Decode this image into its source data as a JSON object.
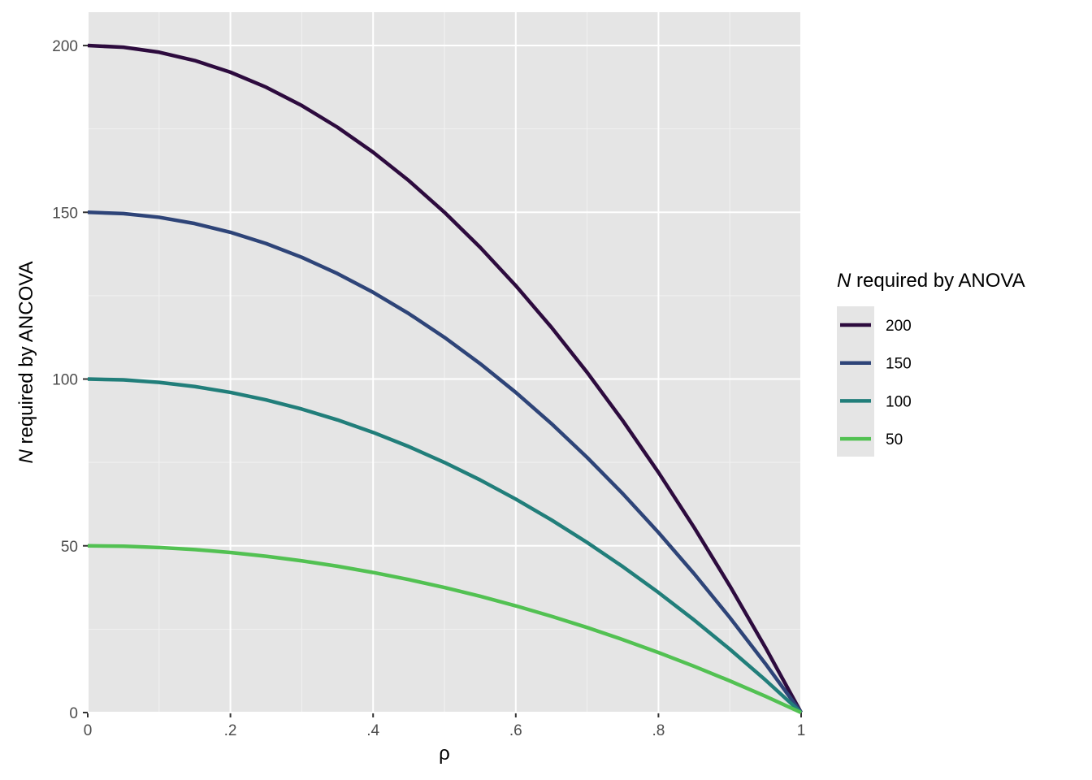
{
  "chart_data": {
    "type": "line",
    "xlabel": "ρ",
    "ylabel": [
      "N",
      " required by ANCOVA"
    ],
    "legend_title": [
      "N",
      " required by ANOVA"
    ],
    "x": [
      0,
      0.05,
      0.1,
      0.15,
      0.2,
      0.25,
      0.3,
      0.35,
      0.4,
      0.45,
      0.5,
      0.55,
      0.6,
      0.65,
      0.7,
      0.75,
      0.8,
      0.85,
      0.9,
      0.95,
      1
    ],
    "series": [
      {
        "name": "200",
        "color": "#2d0b3e",
        "values": [
          200,
          199.5,
          198,
          195.5,
          192,
          187.5,
          182,
          175.5,
          168,
          159.5,
          150,
          139.5,
          128,
          115.5,
          102,
          87.5,
          72,
          55.5,
          38,
          19.5,
          0
        ]
      },
      {
        "name": "150",
        "color": "#2e4478",
        "values": [
          150,
          149.625,
          148.5,
          146.625,
          144,
          140.625,
          136.5,
          131.625,
          126,
          119.625,
          112.5,
          104.625,
          96,
          86.625,
          76.5,
          65.625,
          54,
          41.625,
          28.5,
          14.625,
          0
        ]
      },
      {
        "name": "100",
        "color": "#217e7a",
        "values": [
          100,
          99.75,
          99,
          97.75,
          96,
          93.75,
          91,
          87.75,
          84,
          79.75,
          75,
          69.75,
          64,
          57.75,
          51,
          43.75,
          36,
          27.75,
          19,
          9.75,
          0
        ]
      },
      {
        "name": "50",
        "color": "#52c152",
        "values": [
          50,
          49.875,
          49.5,
          48.875,
          48,
          46.875,
          45.5,
          43.875,
          42,
          39.875,
          37.5,
          34.875,
          32,
          28.875,
          25.5,
          21.875,
          18,
          13.875,
          9.5,
          4.875,
          0
        ]
      }
    ],
    "xlim": [
      0,
      1
    ],
    "ylim": [
      0,
      210
    ],
    "xticks": [
      0,
      {
        "value": 0.2,
        "label": ".2"
      },
      {
        "value": 0.4,
        "label": ".4"
      },
      {
        "value": 0.6,
        "label": ".6"
      },
      {
        "value": 0.8,
        "label": ".8"
      },
      1
    ],
    "yticks": [
      0,
      50,
      100,
      150,
      200
    ],
    "xminorticks": [
      0.1,
      0.3,
      0.5,
      0.7,
      0.9
    ],
    "yminorticks": [
      25,
      75,
      125,
      175
    ],
    "grid": true,
    "legend": "right"
  }
}
